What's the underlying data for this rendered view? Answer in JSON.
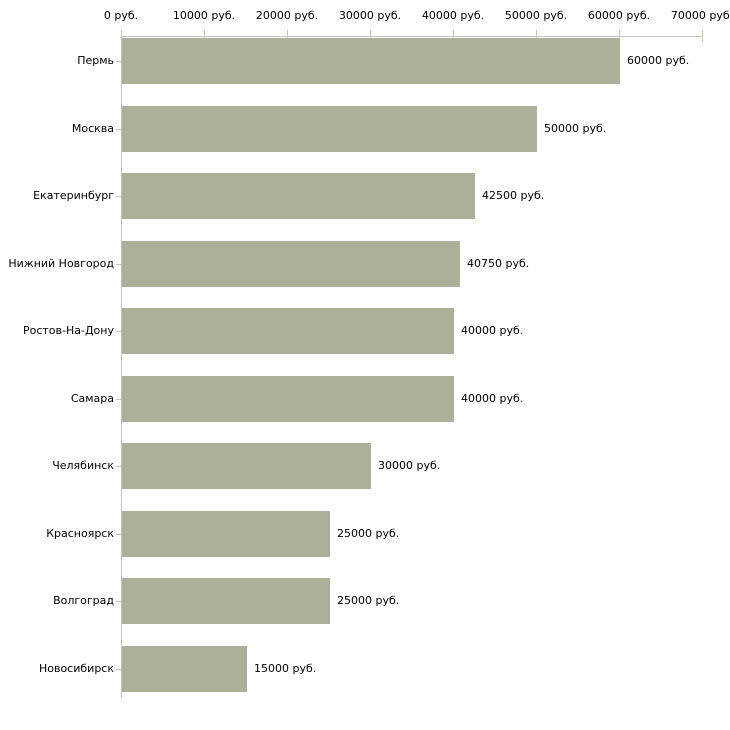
{
  "chart_data": {
    "type": "bar",
    "orientation": "horizontal",
    "title": "",
    "categories": [
      "Пермь",
      "Москва",
      "Екатеринбург",
      "Нижний Новгород",
      "Ростов-На-Дону",
      "Самара",
      "Челябинск",
      "Красноярск",
      "Волгоград",
      "Новосибирск"
    ],
    "values": [
      60000,
      50000,
      42500,
      40750,
      40000,
      40000,
      30000,
      25000,
      25000,
      15000
    ],
    "value_labels": [
      "60000 руб.",
      "50000 руб.",
      "42500 руб.",
      "40750 руб.",
      "40000 руб.",
      "40000 руб.",
      "30000 руб.",
      "25000 руб.",
      "25000 руб.",
      "15000 руб."
    ],
    "unit": "руб.",
    "xlabel": "",
    "ylabel": "",
    "x_axis": {
      "position": "top",
      "min": 0,
      "max": 70000,
      "tick_interval": 10000,
      "tick_labels": [
        "0 руб.",
        "10000 руб.",
        "20000 руб.",
        "30000 руб.",
        "40000 руб.",
        "50000 руб.",
        "60000 руб.",
        "70000 руб."
      ]
    },
    "grid": false,
    "legend": false,
    "colors": {
      "bar": "#abb199",
      "axis_line": "#c0c0c0",
      "tick_mark": "#c9cca3",
      "text": "#000000",
      "background": "#ffffff"
    }
  }
}
